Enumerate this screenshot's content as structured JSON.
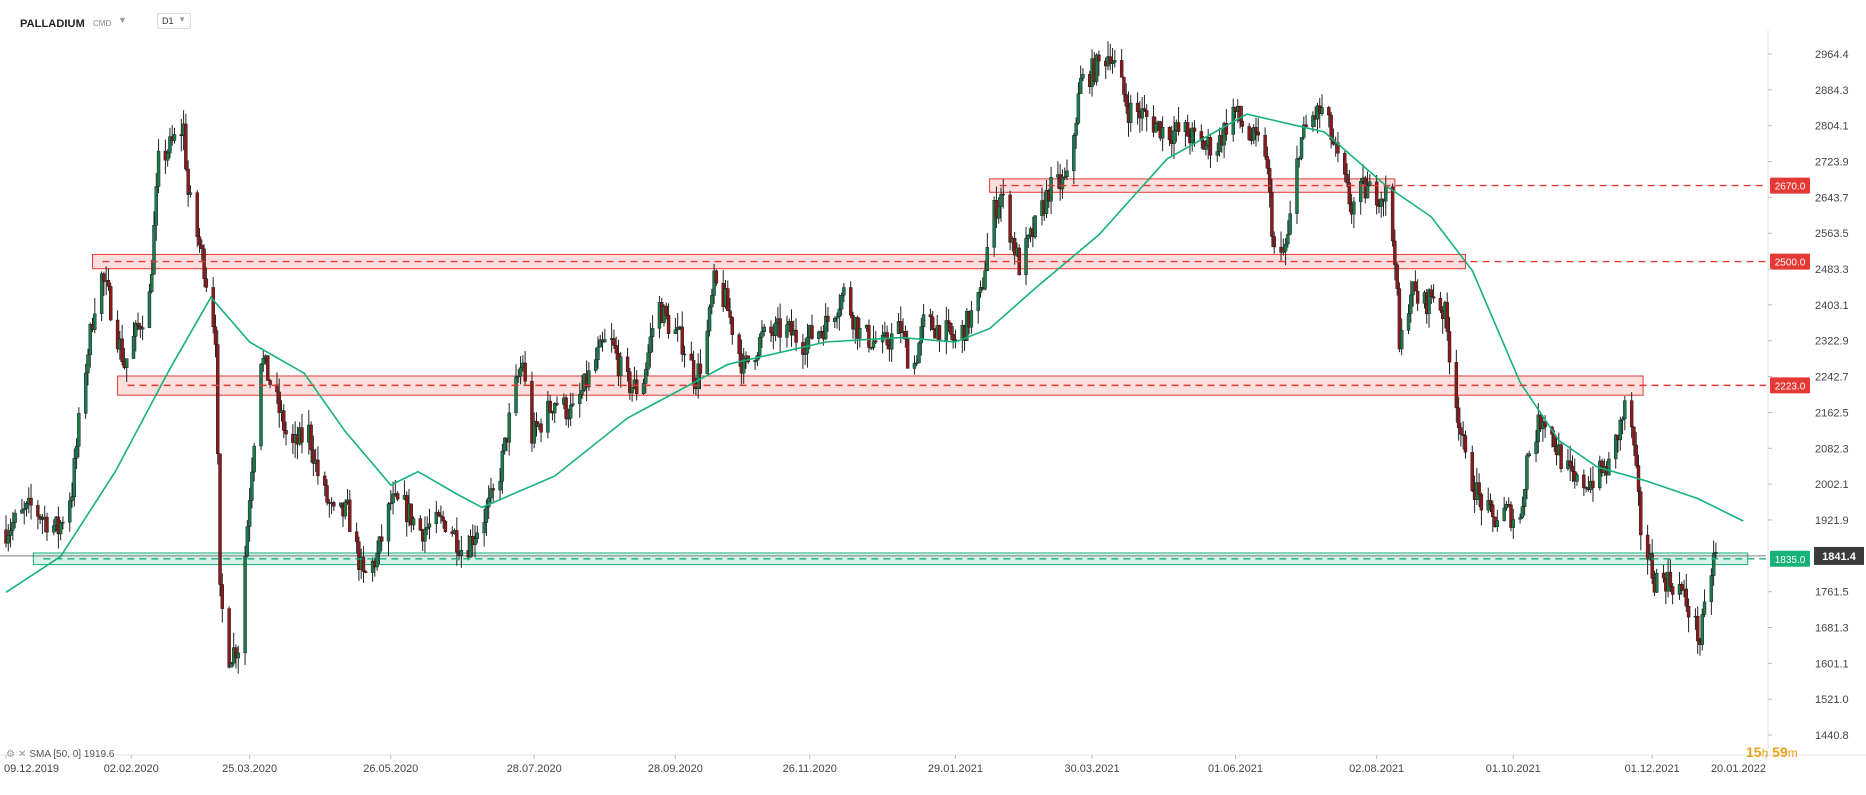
{
  "header": {
    "symbol": "PALLADIUM",
    "instrument_type": "CMD",
    "timeframe": "D1"
  },
  "indicator": {
    "label": "SMA [50, 0] 1919.6",
    "color": "#16b27a"
  },
  "timer": {
    "hours": "15",
    "hours_unit": "h",
    "minutes": "59",
    "minutes_unit": "m"
  },
  "colors": {
    "up": "#1b7a4a",
    "down": "#8b1a1a",
    "resistance": "#e53935",
    "support": "#16b27a",
    "sma": "#16b27a",
    "current": "#3a3a3a"
  },
  "chart_data": {
    "type": "candlestick",
    "y_axis": {
      "range": [
        1440.8,
        3044.6
      ],
      "ticks": [
        2964.4,
        2884.3,
        2804.1,
        2723.9,
        2643.7,
        2563.5,
        2483.3,
        2403.1,
        2322.9,
        2242.7,
        2162.5,
        2082.3,
        2002.1,
        1921.9,
        1841.8,
        1761.5,
        1681.3,
        1601.1,
        1521.0,
        1440.8
      ],
      "tick_labels": [
        "2964.4",
        "2884.3",
        "2804.1",
        "2723.9",
        "2643.7",
        "2563.5",
        "2483.3",
        "2403.1",
        "2322.9",
        "2242.7",
        "2162.5",
        "2082.3",
        "2002.1",
        "1921.9",
        "",
        "1761.5",
        "1681.3",
        "1601.1",
        "1521.0",
        "1440.8"
      ]
    },
    "x_axis": {
      "range": [
        "2019-12-09",
        "2022-01-20"
      ],
      "tick_dates": [
        "2019-12-09",
        "2020-02-02",
        "2020-03-25",
        "2020-05-26",
        "2020-07-28",
        "2020-09-28",
        "2020-11-26",
        "2021-01-29",
        "2021-03-30",
        "2021-06-01",
        "2021-08-02",
        "2021-10-01",
        "2021-12-01",
        "2022-01-20"
      ],
      "tick_labels": [
        "09.12.2019",
        "02.02.2020",
        "25.03.2020",
        "26.05.2020",
        "28.07.2020",
        "28.09.2020",
        "26.11.2020",
        "29.01.2021",
        "30.03.2021",
        "01.06.2021",
        "02.08.2021",
        "01.10.2021",
        "01.12.2021",
        "20.01.2022"
      ]
    },
    "price_path": [
      [
        "2019-12-09",
        1900
      ],
      [
        "2019-12-20",
        1950
      ],
      [
        "2020-01-01",
        1900
      ],
      [
        "2020-01-07",
        1990
      ],
      [
        "2020-01-12",
        2230
      ],
      [
        "2020-01-19",
        2480
      ],
      [
        "2020-01-23",
        2420
      ],
      [
        "2020-01-30",
        2270
      ],
      [
        "2020-02-10",
        2420
      ],
      [
        "2020-02-14",
        2720
      ],
      [
        "2020-02-25",
        2800
      ],
      [
        "2020-02-27",
        2650
      ],
      [
        "2020-03-05",
        2490
      ],
      [
        "2020-03-10",
        2340
      ],
      [
        "2020-03-12",
        1750
      ],
      [
        "2020-03-16",
        1620
      ],
      [
        "2020-03-20",
        1640
      ],
      [
        "2020-03-26",
        2050
      ],
      [
        "2020-03-30",
        2290
      ],
      [
        "2020-04-05",
        2200
      ],
      [
        "2020-04-12",
        2080
      ],
      [
        "2020-04-20",
        2120
      ],
      [
        "2020-04-25",
        2000
      ],
      [
        "2020-05-01",
        1930
      ],
      [
        "2020-05-07",
        1940
      ],
      [
        "2020-05-14",
        1790
      ],
      [
        "2020-05-20",
        1840
      ],
      [
        "2020-05-26",
        1960
      ],
      [
        "2020-06-01",
        1950
      ],
      [
        "2020-06-08",
        1900
      ],
      [
        "2020-06-20",
        1920
      ],
      [
        "2020-06-27",
        1850
      ],
      [
        "2020-07-07",
        1940
      ],
      [
        "2020-07-12",
        2000
      ],
      [
        "2020-07-19",
        2200
      ],
      [
        "2020-07-23",
        2280
      ],
      [
        "2020-07-26",
        2100
      ],
      [
        "2020-08-06",
        2190
      ],
      [
        "2020-08-14",
        2160
      ],
      [
        "2020-08-25",
        2290
      ],
      [
        "2020-08-30",
        2330
      ],
      [
        "2020-09-06",
        2230
      ],
      [
        "2020-09-13",
        2210
      ],
      [
        "2020-09-20",
        2410
      ],
      [
        "2020-09-25",
        2360
      ],
      [
        "2020-10-01",
        2320
      ],
      [
        "2020-10-07",
        2240
      ],
      [
        "2020-10-11",
        2300
      ],
      [
        "2020-10-15",
        2450
      ],
      [
        "2020-10-20",
        2410
      ],
      [
        "2020-10-28",
        2260
      ],
      [
        "2020-11-05",
        2330
      ],
      [
        "2020-11-15",
        2350
      ],
      [
        "2020-11-23",
        2320
      ],
      [
        "2020-12-03",
        2360
      ],
      [
        "2020-12-11",
        2430
      ],
      [
        "2020-12-18",
        2340
      ],
      [
        "2020-12-28",
        2310
      ],
      [
        "2021-01-05",
        2350
      ],
      [
        "2021-01-10",
        2250
      ],
      [
        "2021-01-15",
        2360
      ],
      [
        "2021-01-23",
        2350
      ],
      [
        "2021-01-29",
        2320
      ],
      [
        "2021-02-03",
        2360
      ],
      [
        "2021-02-09",
        2420
      ],
      [
        "2021-02-14",
        2600
      ],
      [
        "2021-02-18",
        2650
      ],
      [
        "2021-02-26",
        2490
      ],
      [
        "2021-03-07",
        2600
      ],
      [
        "2021-03-11",
        2660
      ],
      [
        "2021-03-19",
        2680
      ],
      [
        "2021-03-25",
        2900
      ],
      [
        "2021-04-02",
        2940
      ],
      [
        "2021-04-07",
        2970
      ],
      [
        "2021-04-15",
        2840
      ],
      [
        "2021-04-21",
        2830
      ],
      [
        "2021-04-26",
        2810
      ],
      [
        "2021-05-02",
        2790
      ],
      [
        "2021-05-10",
        2790
      ],
      [
        "2021-05-17",
        2760
      ],
      [
        "2021-05-24",
        2760
      ],
      [
        "2021-05-31",
        2840
      ],
      [
        "2021-06-07",
        2780
      ],
      [
        "2021-06-14",
        2750
      ],
      [
        "2021-06-19",
        2470
      ],
      [
        "2021-06-24",
        2550
      ],
      [
        "2021-06-29",
        2760
      ],
      [
        "2021-07-04",
        2820
      ],
      [
        "2021-07-10",
        2840
      ],
      [
        "2021-07-14",
        2760
      ],
      [
        "2021-07-22",
        2620
      ],
      [
        "2021-07-27",
        2660
      ],
      [
        "2021-08-06",
        2650
      ],
      [
        "2021-08-10",
        2520
      ],
      [
        "2021-08-12",
        2300
      ],
      [
        "2021-08-17",
        2440
      ],
      [
        "2021-08-22",
        2400
      ],
      [
        "2021-08-27",
        2430
      ],
      [
        "2021-09-01",
        2380
      ],
      [
        "2021-09-05",
        2220
      ],
      [
        "2021-09-10",
        2050
      ],
      [
        "2021-09-16",
        1970
      ],
      [
        "2021-09-22",
        1920
      ],
      [
        "2021-09-28",
        1940
      ],
      [
        "2021-10-04",
        1920
      ],
      [
        "2021-10-07",
        2060
      ],
      [
        "2021-10-14",
        2160
      ],
      [
        "2021-10-22",
        2060
      ],
      [
        "2021-10-28",
        2000
      ],
      [
        "2021-11-04",
        2010
      ],
      [
        "2021-11-12",
        2040
      ],
      [
        "2021-11-19",
        2170
      ],
      [
        "2021-11-22",
        2130
      ],
      [
        "2021-11-26",
        1900
      ],
      [
        "2021-12-02",
        1790
      ],
      [
        "2021-12-07",
        1790
      ],
      [
        "2021-12-13",
        1770
      ],
      [
        "2021-12-19",
        1700
      ],
      [
        "2021-12-22",
        1650
      ],
      [
        "2021-12-28",
        1840
      ],
      [
        "2021-12-30",
        1841.4
      ]
    ],
    "sma": {
      "period": 50,
      "last_value": 1919.6,
      "points": [
        [
          "2019-12-09",
          1760
        ],
        [
          "2020-01-02",
          1840
        ],
        [
          "2020-01-26",
          2030
        ],
        [
          "2020-02-19",
          2260
        ],
        [
          "2020-03-08",
          2420
        ],
        [
          "2020-03-25",
          2320
        ],
        [
          "2020-04-18",
          2250
        ],
        [
          "2020-05-06",
          2120
        ],
        [
          "2020-05-26",
          2000
        ],
        [
          "2020-06-07",
          2030
        ],
        [
          "2020-06-24",
          1980
        ],
        [
          "2020-07-05",
          1950
        ],
        [
          "2020-08-06",
          2020
        ],
        [
          "2020-09-07",
          2150
        ],
        [
          "2020-10-21",
          2270
        ],
        [
          "2020-12-03",
          2320
        ],
        [
          "2021-01-05",
          2330
        ],
        [
          "2021-01-29",
          2320
        ],
        [
          "2021-02-13",
          2350
        ],
        [
          "2021-03-05",
          2440
        ],
        [
          "2021-04-02",
          2560
        ],
        [
          "2021-05-02",
          2730
        ],
        [
          "2021-06-06",
          2830
        ],
        [
          "2021-07-10",
          2790
        ],
        [
          "2021-08-06",
          2670
        ],
        [
          "2021-08-26",
          2600
        ],
        [
          "2021-09-13",
          2480
        ],
        [
          "2021-10-04",
          2230
        ],
        [
          "2021-10-21",
          2100
        ],
        [
          "2021-11-07",
          2040
        ],
        [
          "2021-11-28",
          2010
        ],
        [
          "2021-12-21",
          1970
        ],
        [
          "2022-01-10",
          1919.6
        ]
      ]
    },
    "levels": [
      {
        "price": 2670.0,
        "label": "2670.0",
        "kind": "resistance",
        "zone": [
          2655,
          2685
        ],
        "zone_dates": [
          "2021-02-13",
          "2021-08-10"
        ]
      },
      {
        "price": 2500.0,
        "label": "2500.0",
        "kind": "resistance",
        "zone": [
          2484,
          2516
        ],
        "zone_dates": [
          "2020-01-16",
          "2021-09-10"
        ]
      },
      {
        "price": 2223.0,
        "label": "2223.0",
        "kind": "resistance",
        "zone": [
          2201,
          2244
        ],
        "zone_dates": [
          "2020-01-27",
          "2021-11-27"
        ]
      },
      {
        "price": 1835.0,
        "label": "1835.0",
        "kind": "support",
        "zone": [
          1822,
          1848
        ],
        "zone_dates": [
          "2019-12-21",
          "2022-01-12"
        ]
      }
    ],
    "current_price": {
      "value": 1841.4,
      "label": "1841.4"
    },
    "grid": false,
    "legend": "bottom-left"
  }
}
